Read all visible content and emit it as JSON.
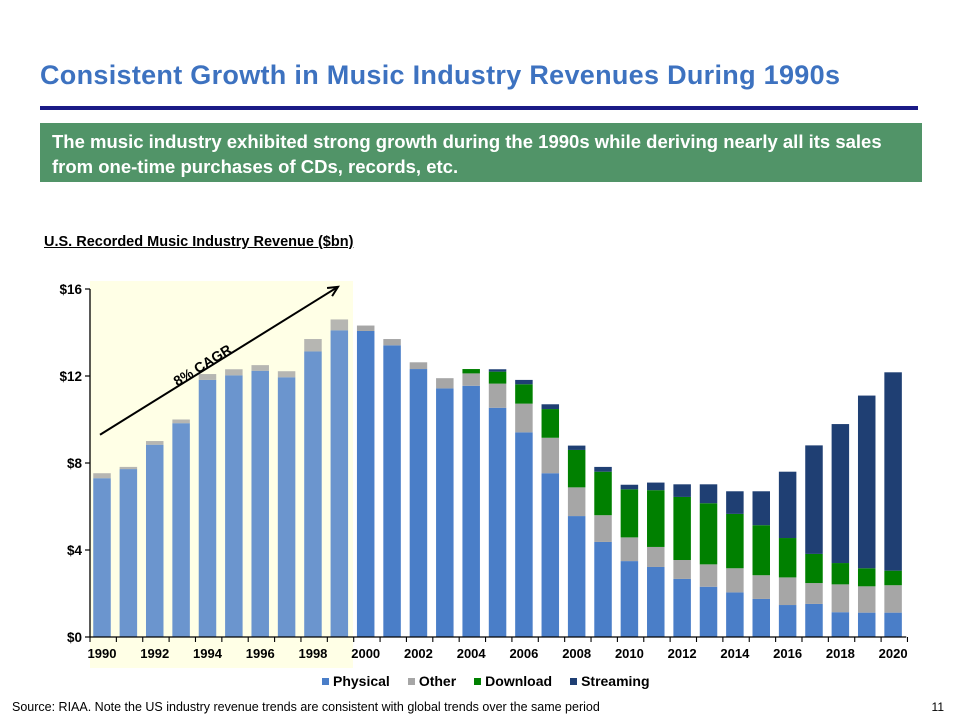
{
  "header": {
    "title": "Consistent Growth in Music Industry Revenues During 1990s",
    "callout": "The music industry exhibited strong growth during the 1990s while deriving nearly all its sales from one-time purchases of CDs, records, etc."
  },
  "footer": {
    "source": "Source: RIAA. Note the US industry revenue trends are consistent with global trends over the same period",
    "page_number": "11"
  },
  "colors": {
    "title": "#3D72C0",
    "rule": "#1A1A86",
    "callout_bg": "#519468",
    "highlight_bg": "#FFFFE6"
  },
  "chart_data": {
    "type": "bar",
    "stacked": true,
    "title": "U.S. Recorded Music Industry Revenue ($bn)",
    "xlabel": "",
    "ylabel": "",
    "ylim": [
      0,
      16
    ],
    "yticks": [
      0,
      4,
      8,
      12,
      16
    ],
    "ytick_labels": [
      "$0",
      "$4",
      "$8",
      "$12",
      "$16"
    ],
    "grid": false,
    "legend_position": "bottom",
    "categories": [
      "1990",
      "1991",
      "1992",
      "1993",
      "1994",
      "1995",
      "1996",
      "1997",
      "1998",
      "1999",
      "2000",
      "2001",
      "2002",
      "2003",
      "2004",
      "2005",
      "2006",
      "2007",
      "2008",
      "2009",
      "2010",
      "2011",
      "2012",
      "2013",
      "2014",
      "2015",
      "2016",
      "2017",
      "2018",
      "2019",
      "2020"
    ],
    "xtick_labels": [
      "1990",
      "1992",
      "1994",
      "1996",
      "1998",
      "2000",
      "2002",
      "2004",
      "2006",
      "2008",
      "2010",
      "2012",
      "2014",
      "2016",
      "2018",
      "2020"
    ],
    "series": [
      {
        "name": "Physical",
        "color": "#4A7EC8",
        "values": [
          7.3,
          7.72,
          8.84,
          9.83,
          11.82,
          12.03,
          12.24,
          11.94,
          13.13,
          14.1,
          14.07,
          13.41,
          12.32,
          11.43,
          11.55,
          10.54,
          9.41,
          7.53,
          5.56,
          4.37,
          3.49,
          3.22,
          2.67,
          2.31,
          2.05,
          1.75,
          1.47,
          1.52,
          1.14,
          1.12,
          1.12
        ]
      },
      {
        "name": "Other",
        "color": "#A6A6A6",
        "values": [
          0.23,
          0.1,
          0.17,
          0.17,
          0.27,
          0.28,
          0.26,
          0.28,
          0.57,
          0.5,
          0.25,
          0.29,
          0.31,
          0.47,
          0.57,
          1.11,
          1.32,
          1.63,
          1.32,
          1.23,
          1.09,
          0.92,
          0.87,
          1.03,
          1.11,
          1.09,
          1.27,
          0.96,
          1.28,
          1.21,
          1.26
        ]
      },
      {
        "name": "Download",
        "color": "#008000",
        "values": [
          0,
          0,
          0,
          0,
          0,
          0,
          0,
          0,
          0,
          0,
          0,
          0,
          0,
          0,
          0.2,
          0.55,
          0.89,
          1.32,
          1.72,
          2.0,
          2.21,
          2.61,
          2.9,
          2.81,
          2.5,
          2.3,
          1.81,
          1.34,
          0.98,
          0.83,
          0.67
        ]
      },
      {
        "name": "Streaming",
        "color": "#1F3F73",
        "values": [
          0,
          0,
          0,
          0,
          0,
          0,
          0,
          0,
          0,
          0,
          0,
          0,
          0,
          0,
          0,
          0.11,
          0.2,
          0.22,
          0.2,
          0.22,
          0.21,
          0.35,
          0.58,
          0.87,
          1.04,
          1.56,
          3.05,
          4.99,
          6.39,
          7.94,
          9.12
        ]
      }
    ],
    "annotations": [
      {
        "text": "8% CAGR",
        "type": "arrow",
        "from_category": "1990",
        "to_category": "1999",
        "from_value": 9.3,
        "to_value": 16.1
      },
      {
        "type": "highlight-region",
        "from_category": "1990",
        "to_category": "1999"
      }
    ]
  }
}
